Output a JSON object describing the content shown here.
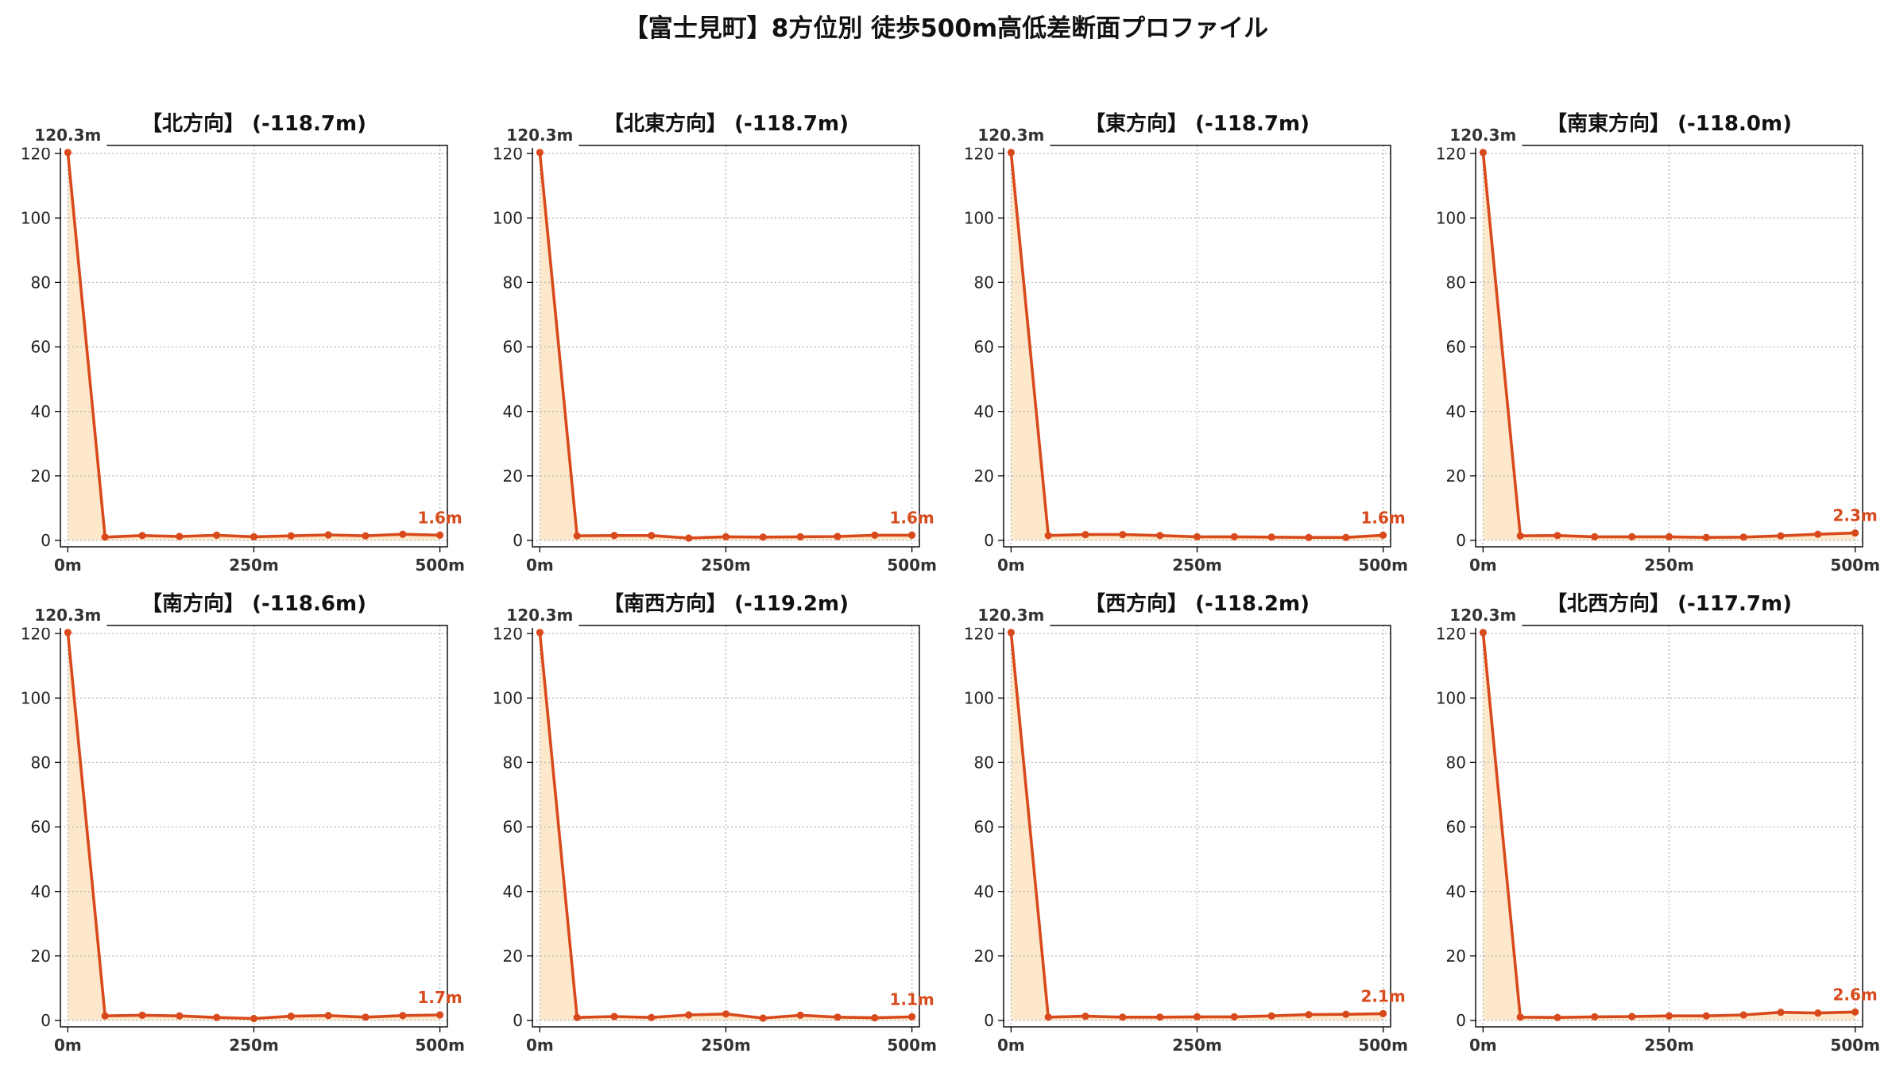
{
  "title": "【富士見町】8方位別 徒歩500m高低差断面プロファイル",
  "colors": {
    "line": "#d84a1c",
    "fill": "#fde8cc",
    "grid": "#b8b8b8",
    "start_label": "#333333"
  },
  "chart_data": [
    {
      "type": "line",
      "title": "【北方向】 (-118.7m)",
      "x": [
        0,
        50,
        100,
        150,
        200,
        250,
        300,
        350,
        400,
        450,
        500
      ],
      "series": [
        {
          "values": [
            120.3,
            1.0,
            1.5,
            1.2,
            1.6,
            1.1,
            1.4,
            1.7,
            1.4,
            1.9,
            1.6
          ]
        }
      ],
      "start_label": "120.3m",
      "end_label": "1.6m",
      "xticks": [
        0,
        250,
        500
      ],
      "xtick_labels": [
        "0m",
        "250m",
        "500m"
      ],
      "yticks": [
        0,
        20,
        40,
        60,
        80,
        100,
        120
      ],
      "ytick_labels": [
        "0",
        "20",
        "40",
        "60",
        "80",
        "100",
        "120"
      ],
      "xlim": [
        -10,
        510
      ],
      "ylim": [
        -2,
        122.5
      ],
      "grid": true
    },
    {
      "type": "line",
      "title": "【北東方向】 (-118.7m)",
      "x": [
        0,
        50,
        100,
        150,
        200,
        250,
        300,
        350,
        400,
        450,
        500
      ],
      "series": [
        {
          "values": [
            120.3,
            1.4,
            1.5,
            1.5,
            0.7,
            1.1,
            1.0,
            1.1,
            1.2,
            1.6,
            1.6
          ]
        }
      ],
      "start_label": "120.3m",
      "end_label": "1.6m",
      "xticks": [
        0,
        250,
        500
      ],
      "xtick_labels": [
        "0m",
        "250m",
        "500m"
      ],
      "yticks": [
        0,
        20,
        40,
        60,
        80,
        100,
        120
      ],
      "ytick_labels": [
        "0",
        "20",
        "40",
        "60",
        "80",
        "100",
        "120"
      ],
      "xlim": [
        -10,
        510
      ],
      "ylim": [
        -2,
        122.5
      ],
      "grid": true
    },
    {
      "type": "line",
      "title": "【東方向】 (-118.7m)",
      "x": [
        0,
        50,
        100,
        150,
        200,
        250,
        300,
        350,
        400,
        450,
        500
      ],
      "series": [
        {
          "values": [
            120.3,
            1.5,
            1.8,
            1.8,
            1.5,
            1.1,
            1.1,
            1.0,
            0.9,
            0.9,
            1.6
          ]
        }
      ],
      "start_label": "120.3m",
      "end_label": "1.6m",
      "xticks": [
        0,
        250,
        500
      ],
      "xtick_labels": [
        "0m",
        "250m",
        "500m"
      ],
      "yticks": [
        0,
        20,
        40,
        60,
        80,
        100,
        120
      ],
      "ytick_labels": [
        "0",
        "20",
        "40",
        "60",
        "80",
        "100",
        "120"
      ],
      "xlim": [
        -10,
        510
      ],
      "ylim": [
        -2,
        122.5
      ],
      "grid": true
    },
    {
      "type": "line",
      "title": "【南東方向】 (-118.0m)",
      "x": [
        0,
        50,
        100,
        150,
        200,
        250,
        300,
        350,
        400,
        450,
        500
      ],
      "series": [
        {
          "values": [
            120.3,
            1.4,
            1.5,
            1.1,
            1.1,
            1.1,
            0.9,
            1.0,
            1.4,
            1.9,
            2.3
          ]
        }
      ],
      "start_label": "120.3m",
      "end_label": "2.3m",
      "xticks": [
        0,
        250,
        500
      ],
      "xtick_labels": [
        "0m",
        "250m",
        "500m"
      ],
      "yticks": [
        0,
        20,
        40,
        60,
        80,
        100,
        120
      ],
      "ytick_labels": [
        "0",
        "20",
        "40",
        "60",
        "80",
        "100",
        "120"
      ],
      "xlim": [
        -10,
        510
      ],
      "ylim": [
        -2,
        122.5
      ],
      "grid": true
    },
    {
      "type": "line",
      "title": "【南方向】 (-118.6m)",
      "x": [
        0,
        50,
        100,
        150,
        200,
        250,
        300,
        350,
        400,
        450,
        500
      ],
      "series": [
        {
          "values": [
            120.3,
            1.4,
            1.6,
            1.4,
            0.9,
            0.6,
            1.3,
            1.5,
            1.0,
            1.5,
            1.7
          ]
        }
      ],
      "start_label": "120.3m",
      "end_label": "1.7m",
      "xticks": [
        0,
        250,
        500
      ],
      "xtick_labels": [
        "0m",
        "250m",
        "500m"
      ],
      "yticks": [
        0,
        20,
        40,
        60,
        80,
        100,
        120
      ],
      "ytick_labels": [
        "0",
        "20",
        "40",
        "60",
        "80",
        "100",
        "120"
      ],
      "xlim": [
        -10,
        510
      ],
      "ylim": [
        -2,
        122.5
      ],
      "grid": true
    },
    {
      "type": "line",
      "title": "【南西方向】 (-119.2m)",
      "x": [
        0,
        50,
        100,
        150,
        200,
        250,
        300,
        350,
        400,
        450,
        500
      ],
      "series": [
        {
          "values": [
            120.3,
            0.9,
            1.2,
            0.9,
            1.7,
            2.0,
            0.7,
            1.6,
            1.0,
            0.8,
            1.1
          ]
        }
      ],
      "start_label": "120.3m",
      "end_label": "1.1m",
      "xticks": [
        0,
        250,
        500
      ],
      "xtick_labels": [
        "0m",
        "250m",
        "500m"
      ],
      "yticks": [
        0,
        20,
        40,
        60,
        80,
        100,
        120
      ],
      "ytick_labels": [
        "0",
        "20",
        "40",
        "60",
        "80",
        "100",
        "120"
      ],
      "xlim": [
        -10,
        510
      ],
      "ylim": [
        -2,
        122.5
      ],
      "grid": true
    },
    {
      "type": "line",
      "title": "【西方向】 (-118.2m)",
      "x": [
        0,
        50,
        100,
        150,
        200,
        250,
        300,
        350,
        400,
        450,
        500
      ],
      "series": [
        {
          "values": [
            120.3,
            1.0,
            1.3,
            1.0,
            1.0,
            1.1,
            1.1,
            1.4,
            1.8,
            1.9,
            2.1
          ]
        }
      ],
      "start_label": "120.3m",
      "end_label": "2.1m",
      "xticks": [
        0,
        250,
        500
      ],
      "xtick_labels": [
        "0m",
        "250m",
        "500m"
      ],
      "yticks": [
        0,
        20,
        40,
        60,
        80,
        100,
        120
      ],
      "ytick_labels": [
        "0",
        "20",
        "40",
        "60",
        "80",
        "100",
        "120"
      ],
      "xlim": [
        -10,
        510
      ],
      "ylim": [
        -2,
        122.5
      ],
      "grid": true
    },
    {
      "type": "line",
      "title": "【北西方向】 (-117.7m)",
      "x": [
        0,
        50,
        100,
        150,
        200,
        250,
        300,
        350,
        400,
        450,
        500
      ],
      "series": [
        {
          "values": [
            120.3,
            1.0,
            0.9,
            1.1,
            1.2,
            1.4,
            1.4,
            1.7,
            2.5,
            2.3,
            2.6
          ]
        }
      ],
      "start_label": "120.3m",
      "end_label": "2.6m",
      "xticks": [
        0,
        250,
        500
      ],
      "xtick_labels": [
        "0m",
        "250m",
        "500m"
      ],
      "yticks": [
        0,
        20,
        40,
        60,
        80,
        100,
        120
      ],
      "ytick_labels": [
        "0",
        "20",
        "40",
        "60",
        "80",
        "100",
        "120"
      ],
      "xlim": [
        -10,
        510
      ],
      "ylim": [
        -2,
        122.5
      ],
      "grid": true
    }
  ]
}
